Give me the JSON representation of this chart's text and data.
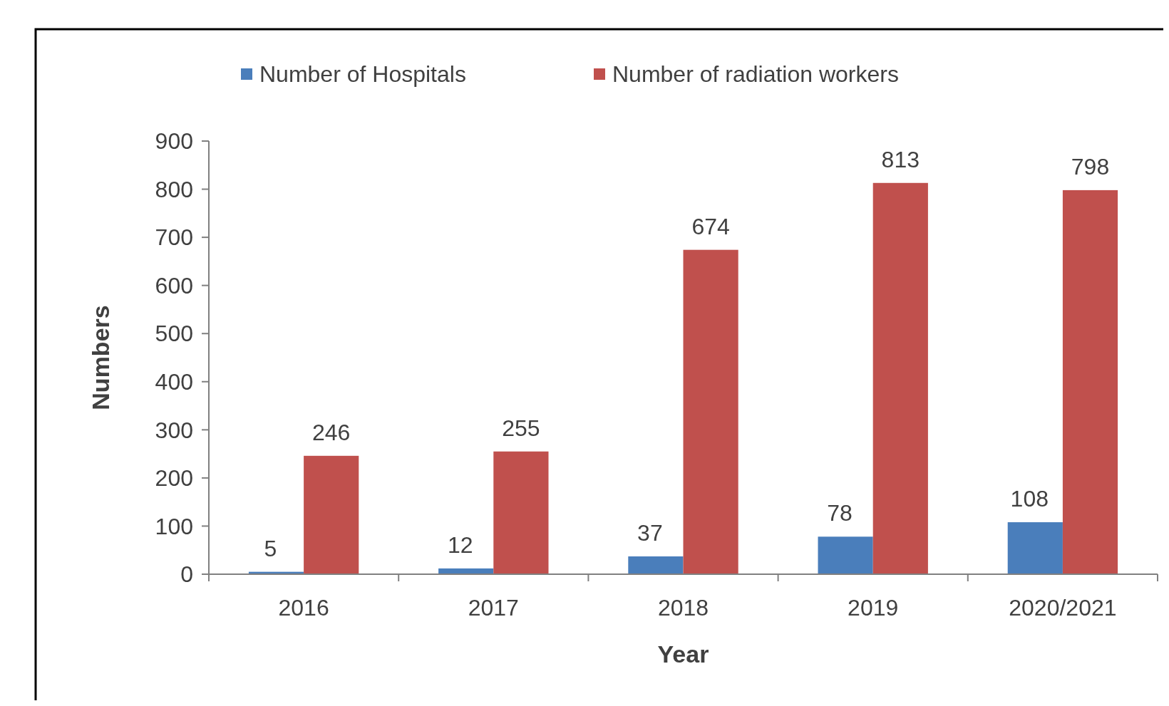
{
  "chart_data": {
    "type": "bar",
    "xlabel": "Year",
    "ylabel": "Numbers",
    "categories": [
      "2016",
      "2017",
      "2018",
      "2019",
      "2020/2021"
    ],
    "series": [
      {
        "name": "Number of Hospitals",
        "color": "#4a7ebb",
        "values": [
          5,
          12,
          37,
          78,
          108
        ]
      },
      {
        "name": "Number of radiation workers",
        "color": "#c0504d",
        "values": [
          246,
          255,
          674,
          813,
          798
        ]
      }
    ],
    "ylim": [
      0,
      900
    ],
    "yticks": [
      0,
      100,
      200,
      300,
      400,
      500,
      600,
      700,
      800,
      900
    ],
    "data_labels": true,
    "legend": "top",
    "grid": false
  }
}
